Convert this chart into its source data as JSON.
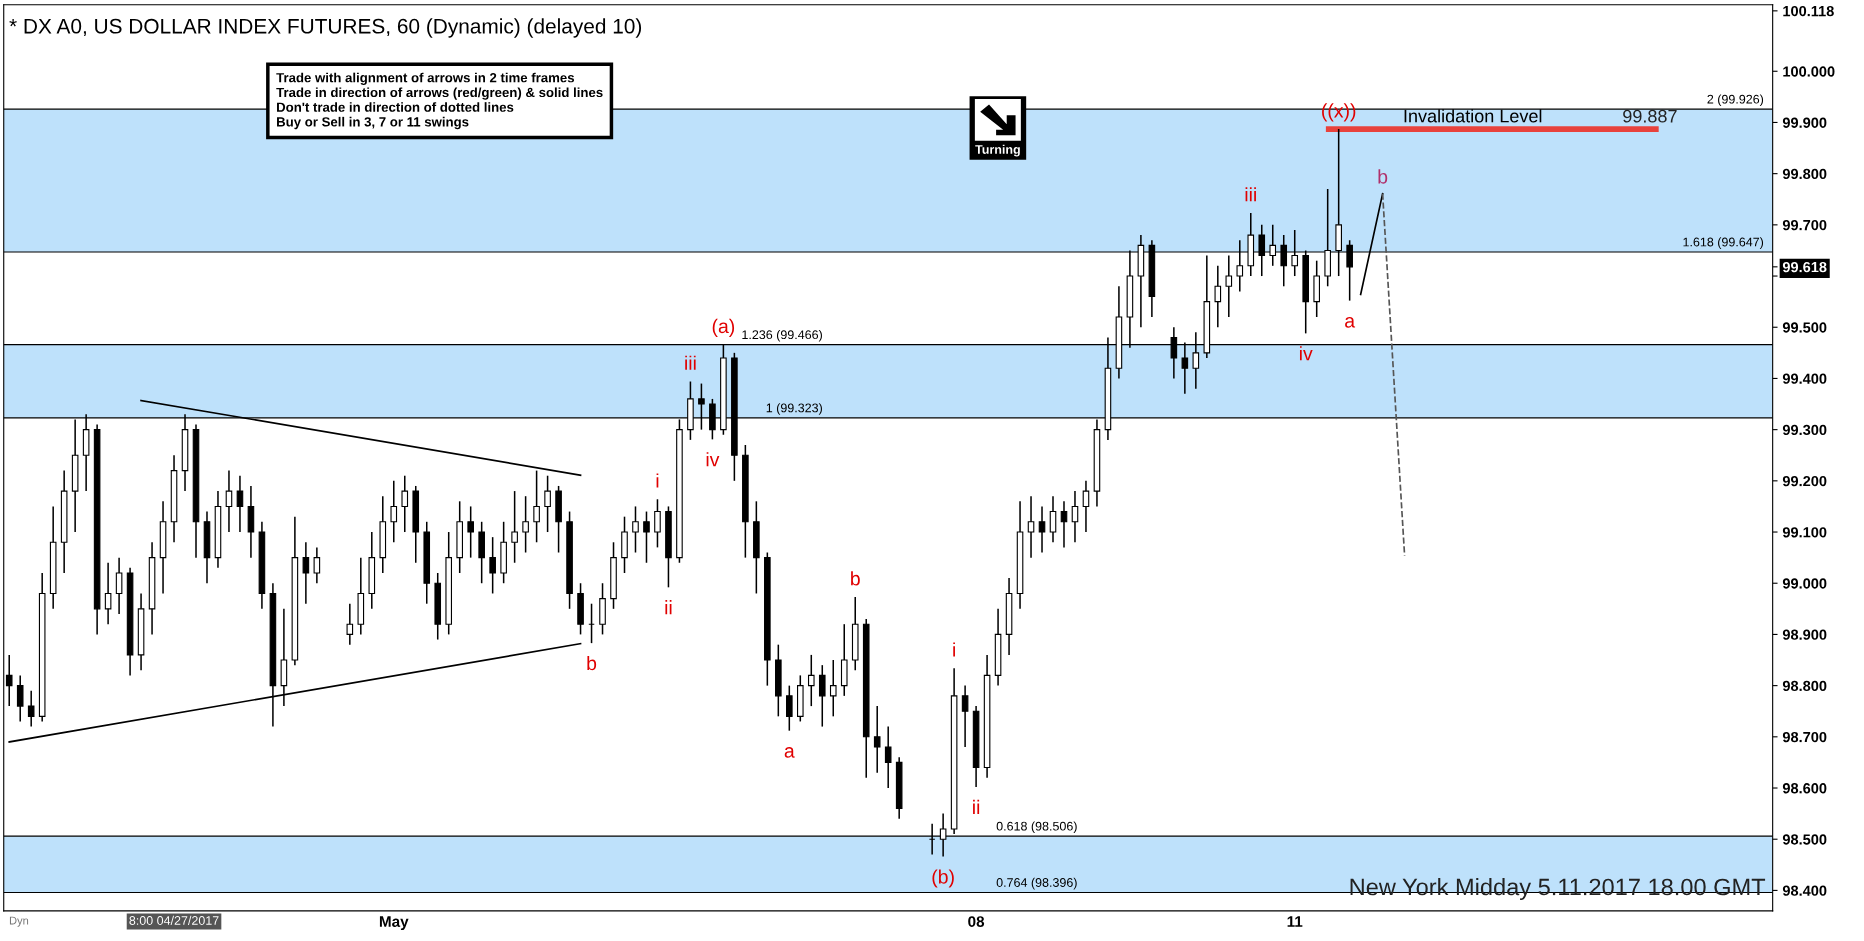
{
  "chart_data": {
    "type": "candlestick",
    "title": "* DX A0, US DOLLAR INDEX FUTURES, 60 (Dynamic) (delayed 10)",
    "categories": [
      null,
      null,
      null,
      null,
      null,
      null,
      null,
      null,
      null,
      null,
      null,
      null,
      null,
      null,
      null,
      "8:00 04/27/2017",
      null,
      null,
      null,
      null,
      null,
      null,
      null,
      null,
      null,
      null,
      null,
      null,
      null,
      null,
      null,
      null,
      null,
      null,
      null,
      "May",
      null,
      null,
      null,
      null,
      null,
      null,
      null,
      null,
      null,
      null,
      null,
      null,
      null,
      null,
      null,
      null,
      null,
      null,
      null,
      null,
      null,
      null,
      null,
      null,
      null,
      null,
      null,
      null,
      null,
      null,
      null,
      null,
      null,
      null,
      null,
      null,
      null,
      null,
      null,
      null,
      null,
      null,
      null,
      null,
      null,
      null,
      null,
      null,
      null,
      null,
      null,
      null,
      "08",
      null,
      null,
      null,
      null,
      null,
      null,
      null,
      null,
      null,
      null,
      null,
      null,
      null,
      null,
      null,
      null,
      null,
      null,
      null,
      null,
      null,
      null,
      null,
      null,
      null,
      null,
      null,
      null,
      "11",
      null,
      null,
      null,
      null,
      null,
      null,
      null,
      null,
      null,
      null,
      null,
      null,
      null,
      null,
      null,
      null,
      null,
      null,
      null,
      null,
      null,
      null,
      null,
      null,
      null,
      null,
      null,
      null,
      null,
      null,
      null,
      null,
      null,
      null,
      null,
      null,
      null,
      null,
      null,
      null,
      null,
      null,
      null
    ],
    "ohlc": [
      [
        98.82,
        98.86,
        98.76,
        98.8
      ],
      [
        98.8,
        98.82,
        98.73,
        98.76
      ],
      [
        98.76,
        98.79,
        98.72,
        98.74
      ],
      [
        98.74,
        99.02,
        98.73,
        98.98
      ],
      [
        98.98,
        99.15,
        98.95,
        99.08
      ],
      [
        99.08,
        99.22,
        99.02,
        99.18
      ],
      [
        99.18,
        99.32,
        99.1,
        99.25
      ],
      [
        99.25,
        99.33,
        99.18,
        99.3
      ],
      [
        99.3,
        99.31,
        98.9,
        98.95
      ],
      [
        98.95,
        99.04,
        98.92,
        98.98
      ],
      [
        98.98,
        99.05,
        98.94,
        99.02
      ],
      [
        99.02,
        99.03,
        98.82,
        98.86
      ],
      [
        98.86,
        98.98,
        98.83,
        98.95
      ],
      [
        98.95,
        99.08,
        98.9,
        99.05
      ],
      [
        99.05,
        99.16,
        98.98,
        99.12
      ],
      [
        99.12,
        99.25,
        99.08,
        99.22
      ],
      [
        99.22,
        99.33,
        99.18,
        99.3
      ],
      [
        99.3,
        99.31,
        99.05,
        99.12
      ],
      [
        99.12,
        99.14,
        99.0,
        99.05
      ],
      [
        99.05,
        99.18,
        99.03,
        99.15
      ],
      [
        99.15,
        99.22,
        99.1,
        99.18
      ],
      [
        99.18,
        99.21,
        99.1,
        99.15
      ],
      [
        99.15,
        99.19,
        99.05,
        99.1
      ],
      [
        99.1,
        99.12,
        98.95,
        98.98
      ],
      [
        98.98,
        99.0,
        98.72,
        98.8
      ],
      [
        98.8,
        98.95,
        98.76,
        98.85
      ],
      [
        98.85,
        99.13,
        98.84,
        99.05
      ],
      [
        99.05,
        99.08,
        98.96,
        99.02
      ],
      [
        99.02,
        99.07,
        99.0,
        99.05
      ],
      null,
      null,
      [
        98.9,
        98.96,
        98.88,
        98.92
      ],
      [
        98.92,
        99.05,
        98.9,
        98.98
      ],
      [
        98.98,
        99.1,
        98.95,
        99.05
      ],
      [
        99.05,
        99.17,
        99.02,
        99.12
      ],
      [
        99.12,
        99.2,
        99.08,
        99.15
      ],
      [
        99.15,
        99.21,
        99.1,
        99.18
      ],
      [
        99.18,
        99.19,
        99.04,
        99.1
      ],
      [
        99.1,
        99.12,
        98.96,
        99.0
      ],
      [
        99.0,
        99.02,
        98.89,
        98.92
      ],
      [
        98.92,
        99.1,
        98.9,
        99.05
      ],
      [
        99.05,
        99.16,
        99.02,
        99.12
      ],
      [
        99.12,
        99.15,
        99.05,
        99.1
      ],
      [
        99.1,
        99.12,
        99.0,
        99.05
      ],
      [
        99.05,
        99.09,
        98.98,
        99.02
      ],
      [
        99.02,
        99.12,
        99.0,
        99.08
      ],
      [
        99.08,
        99.18,
        99.04,
        99.1
      ],
      [
        99.1,
        99.17,
        99.06,
        99.12
      ],
      [
        99.12,
        99.22,
        99.08,
        99.15
      ],
      [
        99.15,
        99.21,
        99.1,
        99.18
      ],
      [
        99.18,
        99.19,
        99.06,
        99.12
      ],
      [
        99.12,
        99.14,
        98.95,
        98.98
      ],
      [
        98.98,
        99.0,
        98.9,
        98.92
      ],
      [
        98.92,
        98.96,
        98.883,
        98.92
      ],
      [
        98.92,
        99.0,
        98.9,
        98.97
      ],
      [
        98.97,
        99.08,
        98.95,
        99.05
      ],
      [
        99.05,
        99.13,
        99.02,
        99.1
      ],
      [
        99.1,
        99.15,
        99.06,
        99.12
      ],
      [
        99.12,
        99.14,
        99.04,
        99.1
      ],
      [
        99.1,
        99.164,
        99.07,
        99.14
      ],
      [
        99.14,
        99.15,
        98.992,
        99.05
      ],
      [
        99.05,
        99.32,
        99.04,
        99.3
      ],
      [
        99.3,
        99.394,
        99.28,
        99.36
      ],
      [
        99.36,
        99.39,
        99.3,
        99.35
      ],
      [
        99.35,
        99.36,
        99.281,
        99.3
      ],
      [
        99.3,
        99.466,
        99.29,
        99.44
      ],
      [
        99.44,
        99.45,
        99.2,
        99.25
      ],
      [
        99.25,
        99.27,
        99.05,
        99.12
      ],
      [
        99.12,
        99.16,
        98.98,
        99.05
      ],
      [
        99.05,
        99.06,
        98.8,
        98.85
      ],
      [
        98.85,
        98.88,
        98.74,
        98.78
      ],
      [
        98.78,
        98.8,
        98.712,
        98.74
      ],
      [
        98.74,
        98.82,
        98.73,
        98.8
      ],
      [
        98.8,
        98.86,
        98.76,
        98.82
      ],
      [
        98.82,
        98.84,
        98.72,
        98.78
      ],
      [
        98.78,
        98.85,
        98.74,
        98.8
      ],
      [
        98.8,
        98.92,
        98.78,
        98.85
      ],
      [
        98.85,
        98.973,
        98.83,
        98.92
      ],
      [
        98.92,
        98.93,
        98.62,
        98.7
      ],
      [
        98.7,
        98.76,
        98.63,
        98.68
      ],
      [
        98.68,
        98.72,
        98.6,
        98.65
      ],
      [
        98.65,
        98.66,
        98.54,
        98.56
      ],
      null,
      null,
      [
        98.5,
        98.53,
        98.47,
        98.5
      ],
      [
        98.5,
        98.55,
        98.466,
        98.52
      ],
      [
        98.52,
        98.834,
        98.51,
        98.78
      ],
      [
        98.78,
        98.8,
        98.68,
        98.75
      ],
      [
        98.75,
        98.76,
        98.602,
        98.64
      ],
      [
        98.64,
        98.86,
        98.62,
        98.82
      ],
      [
        98.82,
        98.95,
        98.8,
        98.9
      ],
      [
        98.9,
        99.01,
        98.86,
        98.98
      ],
      [
        98.98,
        99.16,
        98.95,
        99.1
      ],
      [
        99.1,
        99.17,
        99.05,
        99.12
      ],
      [
        99.12,
        99.15,
        99.06,
        99.1
      ],
      [
        99.1,
        99.17,
        99.08,
        99.14
      ],
      [
        99.14,
        99.16,
        99.07,
        99.12
      ],
      [
        99.12,
        99.18,
        99.08,
        99.15
      ],
      [
        99.15,
        99.2,
        99.1,
        99.18
      ],
      [
        99.18,
        99.32,
        99.15,
        99.3
      ],
      [
        99.3,
        99.48,
        99.28,
        99.42
      ],
      [
        99.42,
        99.58,
        99.4,
        99.52
      ],
      [
        99.52,
        99.65,
        99.46,
        99.6
      ],
      [
        99.6,
        99.68,
        99.5,
        99.66
      ],
      [
        99.66,
        99.67,
        99.52,
        99.56
      ],
      null,
      [
        99.48,
        99.5,
        99.4,
        99.44
      ],
      [
        99.44,
        99.47,
        99.37,
        99.42
      ],
      [
        99.42,
        99.49,
        99.38,
        99.45
      ],
      [
        99.45,
        99.64,
        99.44,
        99.55
      ],
      [
        99.55,
        99.62,
        99.5,
        99.58
      ],
      [
        99.58,
        99.64,
        99.52,
        99.6
      ],
      [
        99.6,
        99.67,
        99.57,
        99.62
      ],
      [
        99.62,
        99.723,
        99.6,
        99.68
      ],
      [
        99.68,
        99.7,
        99.6,
        99.64
      ],
      [
        99.64,
        99.7,
        99.62,
        99.66
      ],
      [
        99.66,
        99.68,
        99.58,
        99.62
      ],
      [
        99.62,
        99.69,
        99.6,
        99.64
      ],
      [
        99.64,
        99.65,
        99.488,
        99.55
      ],
      [
        99.55,
        99.63,
        99.52,
        99.6
      ],
      [
        99.6,
        99.77,
        99.58,
        99.65
      ],
      [
        99.65,
        99.887,
        99.6,
        99.7
      ],
      [
        99.66,
        99.67,
        99.552,
        99.618
      ],
      null,
      null,
      null,
      null,
      null,
      null,
      null,
      null,
      null,
      null,
      null,
      null,
      null,
      null,
      null,
      null,
      null,
      null,
      null,
      null,
      null,
      null,
      null,
      null,
      null,
      null,
      null,
      null,
      null,
      null,
      null,
      null,
      null,
      null,
      null,
      null,
      null,
      null
    ],
    "color": "#000000",
    "series": [
      {
        "type": "line",
        "color": "#000000",
        "line_style": "solid",
        "values": [
          98.69,
          null,
          null,
          null,
          null,
          null,
          null,
          null,
          null,
          null,
          null,
          null,
          null,
          null,
          null,
          null,
          null,
          null,
          null,
          null,
          null,
          null,
          null,
          null,
          null,
          null,
          null,
          null,
          null,
          null,
          null,
          null,
          null,
          null,
          null,
          null,
          null,
          null,
          null,
          null,
          null,
          null,
          null,
          null,
          null,
          null,
          null,
          null,
          null,
          null,
          null,
          null,
          98.882,
          null,
          null,
          null,
          null,
          null,
          null,
          null,
          null,
          null,
          null,
          null,
          null,
          null,
          null,
          null,
          null,
          null,
          null,
          null,
          null,
          null,
          null,
          null,
          null,
          null,
          null,
          null,
          null,
          null,
          null,
          null,
          null,
          null,
          null,
          null,
          null,
          null,
          null,
          null,
          null,
          null,
          null,
          null,
          null,
          null,
          null,
          null,
          null,
          null,
          null,
          null,
          null,
          null,
          null,
          null,
          null,
          null,
          null,
          null,
          null,
          null,
          null,
          null,
          null,
          null,
          null,
          null,
          null,
          null,
          null,
          null,
          null,
          null,
          null,
          null,
          null,
          null,
          null,
          null,
          null,
          null,
          null,
          null,
          null,
          null,
          null,
          null,
          null,
          null,
          null,
          null,
          null,
          null,
          null,
          null,
          null,
          null,
          null,
          null,
          null,
          null,
          null,
          null,
          null,
          null,
          null,
          null,
          null
        ]
      },
      {
        "type": "line",
        "color": "#000000",
        "line_style": "solid",
        "values": [
          null,
          null,
          null,
          null,
          null,
          null,
          null,
          null,
          null,
          null,
          null,
          null,
          99.357,
          null,
          null,
          null,
          null,
          null,
          null,
          null,
          null,
          null,
          null,
          null,
          null,
          null,
          null,
          null,
          null,
          null,
          null,
          null,
          null,
          null,
          null,
          null,
          null,
          null,
          null,
          null,
          null,
          null,
          null,
          null,
          null,
          null,
          null,
          null,
          null,
          null,
          null,
          null,
          99.211,
          null,
          null,
          null,
          null,
          null,
          null,
          null,
          null,
          null,
          null,
          null,
          null,
          null,
          null,
          null,
          null,
          null,
          null,
          null,
          null,
          null,
          null,
          null,
          null,
          null,
          null,
          null,
          null,
          null,
          null,
          null,
          null,
          null,
          null,
          null,
          null,
          null,
          null,
          null,
          null,
          null,
          null,
          null,
          null,
          null,
          null,
          null,
          null,
          null,
          null,
          null,
          null,
          null,
          null,
          null,
          null,
          null,
          null,
          null,
          null,
          null,
          null,
          null,
          null,
          null,
          null,
          null,
          null,
          null,
          null,
          null,
          null,
          null,
          null,
          null,
          null,
          null,
          null,
          null,
          null,
          null,
          null,
          null,
          null,
          null,
          null,
          null,
          null,
          null,
          null,
          null,
          null,
          null,
          null,
          null,
          null,
          null,
          null,
          null,
          null,
          null,
          null,
          null,
          null,
          null,
          null,
          null,
          null
        ]
      },
      {
        "type": "line",
        "name": "b",
        "color": "#000000",
        "line_style": "solid",
        "values": [
          null,
          null,
          null,
          null,
          null,
          null,
          null,
          null,
          null,
          null,
          null,
          null,
          null,
          null,
          null,
          null,
          null,
          null,
          null,
          null,
          null,
          null,
          null,
          null,
          null,
          null,
          null,
          null,
          null,
          null,
          null,
          null,
          null,
          null,
          null,
          null,
          null,
          null,
          null,
          null,
          null,
          null,
          null,
          null,
          null,
          null,
          null,
          null,
          null,
          null,
          null,
          null,
          null,
          null,
          null,
          null,
          null,
          null,
          null,
          null,
          null,
          null,
          null,
          null,
          null,
          null,
          null,
          null,
          null,
          null,
          null,
          null,
          null,
          null,
          null,
          null,
          null,
          null,
          null,
          null,
          null,
          null,
          null,
          null,
          null,
          null,
          null,
          null,
          null,
          null,
          null,
          null,
          null,
          null,
          null,
          null,
          null,
          null,
          null,
          null,
          null,
          null,
          null,
          null,
          null,
          null,
          null,
          null,
          null,
          null,
          null,
          null,
          null,
          null,
          null,
          null,
          null,
          null,
          null,
          null,
          null,
          null,
          null,
          99.564,
          null,
          99.761,
          null,
          null,
          null,
          null,
          null,
          null,
          null,
          null,
          null,
          null,
          null,
          null,
          null,
          null,
          null,
          null,
          null,
          null,
          null,
          null,
          null,
          null,
          null,
          null,
          null,
          null,
          null,
          null,
          null,
          null,
          null,
          null,
          null,
          null,
          null
        ]
      },
      {
        "type": "line",
        "color": "#555555",
        "line_style": "dashed",
        "values": [
          null,
          null,
          null,
          null,
          null,
          null,
          null,
          null,
          null,
          null,
          null,
          null,
          null,
          null,
          null,
          null,
          null,
          null,
          null,
          null,
          null,
          null,
          null,
          null,
          null,
          null,
          null,
          null,
          null,
          null,
          null,
          null,
          null,
          null,
          null,
          null,
          null,
          null,
          null,
          null,
          null,
          null,
          null,
          null,
          null,
          null,
          null,
          null,
          null,
          null,
          null,
          null,
          null,
          null,
          null,
          null,
          null,
          null,
          null,
          null,
          null,
          null,
          null,
          null,
          null,
          null,
          null,
          null,
          null,
          null,
          null,
          null,
          null,
          null,
          null,
          null,
          null,
          null,
          null,
          null,
          null,
          null,
          null,
          null,
          null,
          null,
          null,
          null,
          null,
          null,
          null,
          null,
          null,
          null,
          null,
          null,
          null,
          null,
          null,
          null,
          null,
          null,
          null,
          null,
          null,
          null,
          null,
          null,
          null,
          null,
          null,
          null,
          null,
          null,
          null,
          null,
          null,
          null,
          null,
          null,
          null,
          null,
          null,
          null,
          null,
          99.761,
          null,
          99.054,
          null,
          null,
          null,
          null,
          null,
          null,
          null,
          null,
          null,
          null,
          null,
          null,
          null,
          null,
          null,
          null,
          null,
          null,
          null,
          null,
          null,
          null,
          null,
          null,
          null,
          null,
          null,
          null,
          null,
          null,
          null,
          null,
          null
        ]
      }
    ],
    "ylim": [
      98.36,
      100.13
    ],
    "yticks": [
      {
        "value": 98.4,
        "label": "98.400"
      },
      {
        "value": 98.5,
        "label": "98.500"
      },
      {
        "value": 98.6,
        "label": "98.600"
      },
      {
        "value": 98.7,
        "label": "98.700"
      },
      {
        "value": 98.8,
        "label": "98.800"
      },
      {
        "value": 98.9,
        "label": "98.900"
      },
      {
        "value": 99.0,
        "label": "99.000"
      },
      {
        "value": 99.1,
        "label": "99.100"
      },
      {
        "value": 99.2,
        "label": "99.200"
      },
      {
        "value": 99.3,
        "label": "99.300"
      },
      {
        "value": 99.4,
        "label": "99.400"
      },
      {
        "value": 99.5,
        "label": "99.500"
      },
      {
        "value": 99.6,
        "label": null
      },
      99.618,
      {
        "value": 99.7,
        "label": "99.700"
      },
      {
        "value": 99.8,
        "label": "99.800"
      },
      {
        "value": 99.9,
        "label": "99.900"
      },
      {
        "value": 100.0,
        "label": "100.000"
      },
      100.118
    ],
    "bands": [
      {
        "axis": "y",
        "from": 99.647,
        "to": 99.926,
        "color": "#b3dcfa"
      },
      {
        "axis": "y",
        "from": 99.323,
        "to": 99.466,
        "color": "#b3dcfa"
      },
      {
        "axis": "y",
        "from": 98.396,
        "to": 98.506,
        "color": "#b3dcfa"
      }
    ],
    "ref_lines": [
      {
        "axis": "y",
        "value": 99.926,
        "label": "2 (99.926)"
      },
      {
        "axis": "y",
        "value": 99.647,
        "label": "1.618 (99.647)"
      },
      {
        "axis": "y",
        "value": 99.466,
        "label": "1.236 (99.466)"
      },
      {
        "axis": "y",
        "value": 99.323,
        "label": "1 (99.323)"
      },
      {
        "axis": "y",
        "value": 98.506,
        "label": "0.618 (98.506)"
      },
      {
        "axis": "y",
        "value": 98.396,
        "label": "0.764 (98.396)"
      },
      {
        "axis": "y",
        "value": 99.887,
        "label": "Invalidation Level",
        "color": "#e8423c"
      }
    ],
    "annotations": [
      "Trade with alignment of arrows in 2 time frames\nTrade in direction of arrows (red/green) & solid lines\nDon't trade in direction of dotted lines\nBuy or Sell in 3, 7 or 11 swings",
      "Turning",
      "New York Midday 5.11.2017 18.00 GMT",
      "Dyn",
      "99.887",
      {
        "text": "b",
        "y": 98.883
      },
      {
        "text": "i",
        "y": 99.164
      },
      {
        "text": "ii",
        "y": 98.992
      },
      {
        "text": "iii",
        "y": 99.394
      },
      {
        "text": "iv",
        "y": 99.281
      },
      {
        "text": "(a)",
        "y": 99.466
      },
      {
        "text": "a",
        "y": 98.712
      },
      {
        "text": "b",
        "y": 98.973
      },
      {
        "text": "(b)",
        "y": 98.466
      },
      {
        "text": "i",
        "y": 98.834
      },
      {
        "text": "ii",
        "y": 98.602
      },
      {
        "text": "iii",
        "y": 99.723
      },
      {
        "text": "iv",
        "y": 99.488
      },
      {
        "text": "((x))",
        "y": 99.887
      },
      {
        "text": "a",
        "y": 99.552
      }
    ],
    "grid": false,
    "legend": false
  }
}
